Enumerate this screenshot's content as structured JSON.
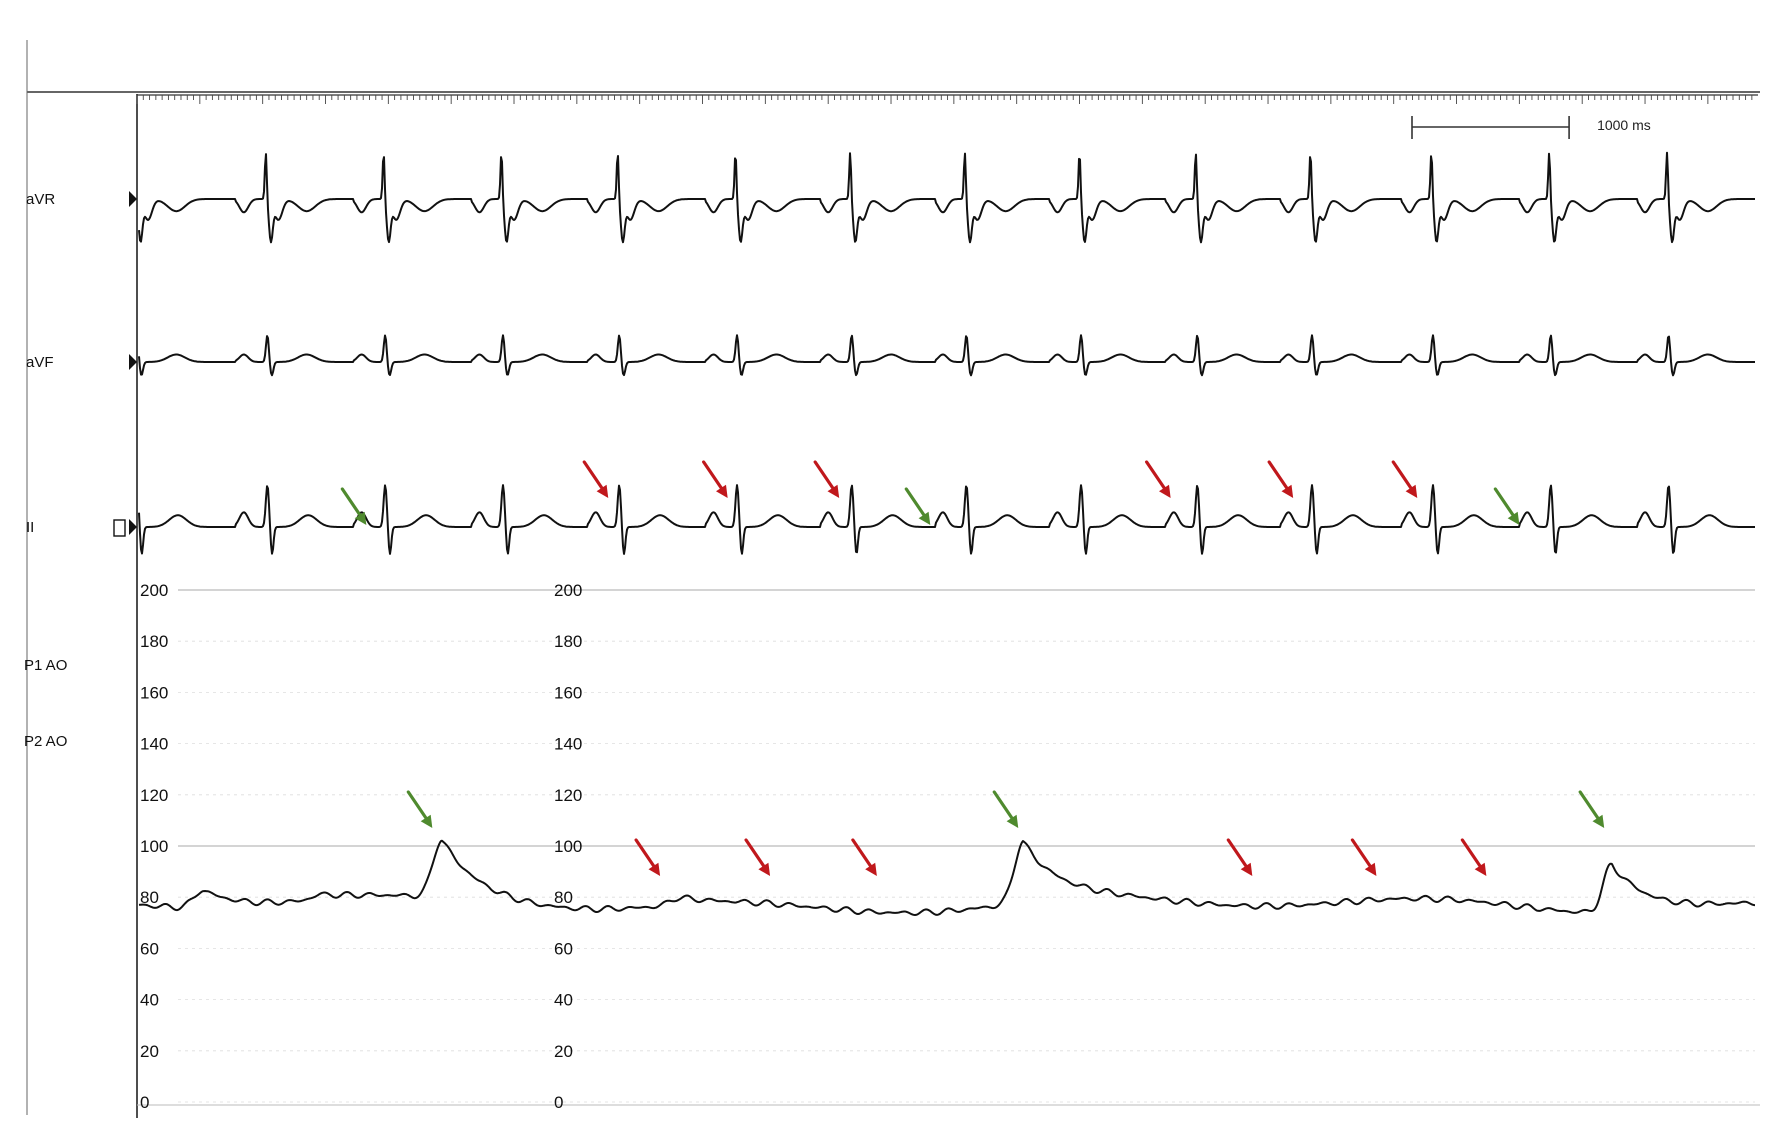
{
  "leads": [
    {
      "id": "aVR",
      "label": "aVR"
    },
    {
      "id": "aVF",
      "label": "aVF"
    },
    {
      "id": "II",
      "label": "II"
    }
  ],
  "pressure_channels": [
    {
      "label": "P1 AO"
    },
    {
      "label": "P2 AO"
    }
  ],
  "scale_bar": {
    "label": "1000 ms",
    "duration_ms": 1000
  },
  "colors": {
    "trace": "#111111",
    "red_arrow": "#c0181c",
    "green_arrow": "#4f8a2e",
    "grid": "#c8c8c8"
  },
  "chart_data": {
    "type": "line",
    "x_unit": "ms",
    "x_range": [
      0,
      10300
    ],
    "ecg_beat_times_ms": [
      0,
      830,
      1580,
      2330,
      3070,
      3820,
      4550,
      5280,
      6010,
      6750,
      7480,
      8250,
      9000,
      9750
    ],
    "pressure": {
      "y_unit": "mmHg",
      "ylim": [
        0,
        200
      ],
      "ticks": [
        200,
        180,
        160,
        140,
        120,
        100,
        80,
        60,
        40,
        20,
        0
      ],
      "baseline_mmHg": 77,
      "peaks": [
        {
          "t_ms": 420,
          "mmHg": 84
        },
        {
          "t_ms": 1170,
          "mmHg": 79
        },
        {
          "t_ms": 1940,
          "mmHg": 100
        },
        {
          "t_ms": 3450,
          "mmHg": 80
        },
        {
          "t_ms": 5640,
          "mmHg": 101
        },
        {
          "t_ms": 9390,
          "mmHg": 96
        }
      ]
    },
    "arrows": {
      "lead_II_red_ms": [
        3000,
        3760,
        4470,
        6580,
        7360,
        8150
      ],
      "lead_II_green_ms": [
        1460,
        5050,
        8800
      ],
      "pressure_red_ms": [
        3330,
        4030,
        4710,
        7100,
        7890,
        8590
      ],
      "pressure_green_ms": [
        1880,
        5610,
        9340
      ]
    }
  }
}
